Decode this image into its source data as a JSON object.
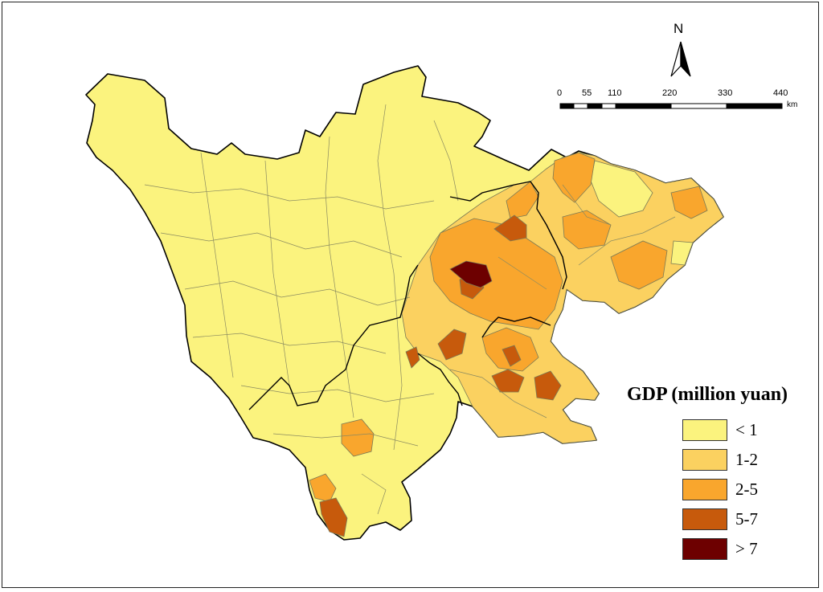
{
  "map": {
    "north_label": "N",
    "scale": {
      "ticks": [
        "0",
        "55",
        "110",
        "220",
        "330",
        "440"
      ],
      "unit": "km"
    },
    "legend": {
      "title": "GDP (million yuan)",
      "items": [
        {
          "label": "< 1",
          "color": "#fbf37e"
        },
        {
          "label": "1-2",
          "color": "#fbd160"
        },
        {
          "label": "2-5",
          "color": "#f9a62d"
        },
        {
          "label": "5-7",
          "color": "#c75a0c"
        },
        {
          "label": "> 7",
          "color": "#6d0000"
        }
      ]
    },
    "colors": {
      "boundary": "#000000",
      "county_line": "#7a7a55",
      "background": "#ffffff"
    }
  }
}
